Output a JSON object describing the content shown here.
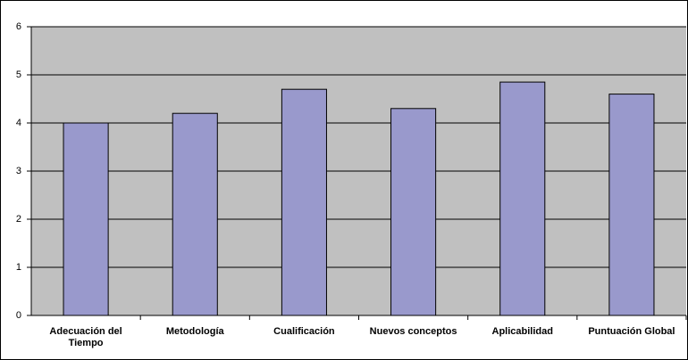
{
  "chart_data": {
    "type": "bar",
    "categories": [
      "Adecuación del Tiempo",
      "Metodología",
      "Cualificación",
      "Nuevos conceptos",
      "Aplicabilidad",
      "Puntuación Global"
    ],
    "values": [
      4.0,
      4.2,
      4.7,
      4.3,
      4.85,
      4.6
    ],
    "color": "#9999cc",
    "ylim": [
      0,
      6
    ],
    "yticks": [
      0,
      1,
      2,
      3,
      4,
      5,
      6
    ],
    "grid": true
  }
}
